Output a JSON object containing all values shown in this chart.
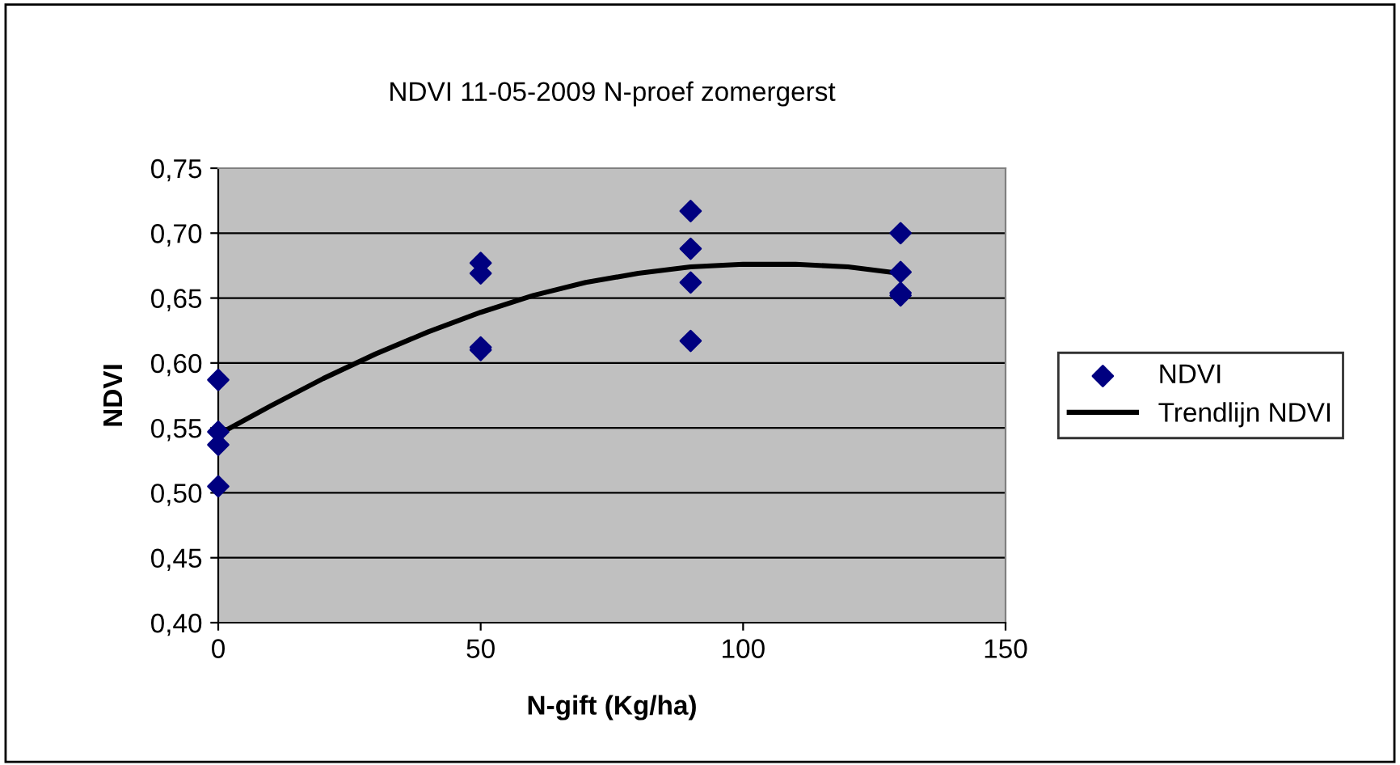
{
  "chart_data": {
    "type": "scatter",
    "title": "NDVI 11-05-2009 N-proef zomergerst",
    "xlabel": "N-gift (Kg/ha)",
    "ylabel": "NDVI",
    "series": [
      {
        "name": "NDVI",
        "color": "#000080",
        "marker": "diamond",
        "x": [
          0,
          0,
          0,
          0,
          50,
          50,
          50,
          50,
          90,
          90,
          90,
          90,
          130,
          130,
          130,
          130
        ],
        "values": [
          0.587,
          0.547,
          0.537,
          0.505,
          0.677,
          0.669,
          0.612,
          0.61,
          0.717,
          0.688,
          0.662,
          0.617,
          0.7,
          0.67,
          0.654,
          0.652
        ]
      },
      {
        "name": "Trendlijn NDVI",
        "type": "line",
        "color": "#000000",
        "marker": "none",
        "line_style": "solid",
        "x": [
          0,
          10,
          20,
          30,
          40,
          50,
          60,
          70,
          80,
          90,
          100,
          110,
          120,
          130
        ],
        "values": [
          0.545,
          0.567,
          0.588,
          0.607,
          0.624,
          0.639,
          0.652,
          0.662,
          0.669,
          0.674,
          0.676,
          0.676,
          0.674,
          0.669
        ]
      }
    ],
    "xlim": [
      0,
      150
    ],
    "xticks": [
      0,
      50,
      100,
      150
    ],
    "ylim": [
      0.4,
      0.75
    ],
    "yticks": [
      {
        "value": 0.4,
        "label": "0,40"
      },
      {
        "value": 0.45,
        "label": "0,45"
      },
      {
        "value": 0.5,
        "label": "0,50"
      },
      {
        "value": 0.55,
        "label": "0,55"
      },
      {
        "value": 0.6,
        "label": "0,60"
      },
      {
        "value": 0.65,
        "label": "0,65"
      },
      {
        "value": 0.7,
        "label": "0,70"
      },
      {
        "value": 0.75,
        "label": "0,75"
      }
    ],
    "grid": "y",
    "legend": "right"
  }
}
